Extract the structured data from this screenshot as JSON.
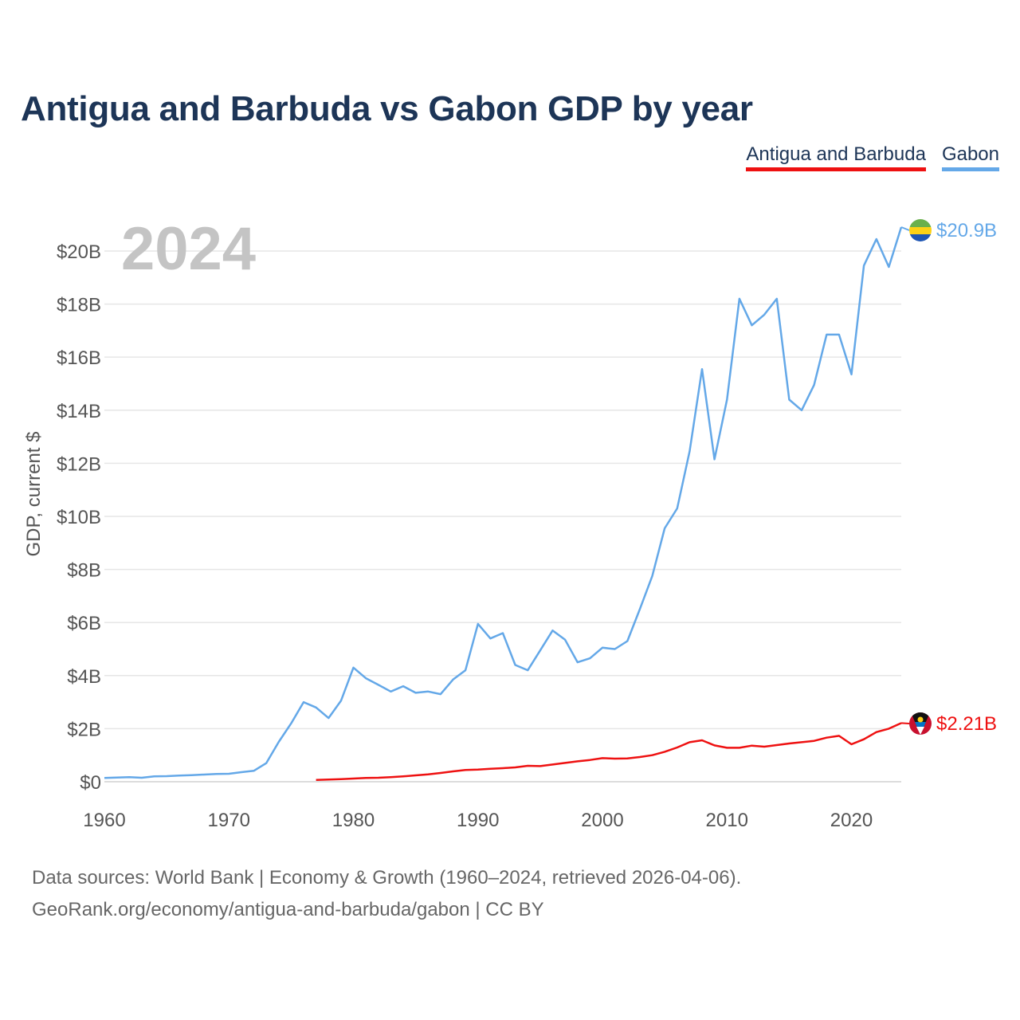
{
  "title": "Antigua and Barbuda vs Gabon GDP by year",
  "year_label": "2024",
  "legend": [
    {
      "name": "Antigua and Barbuda",
      "color": "#ee1111"
    },
    {
      "name": "Gabon",
      "color": "#64a8e8"
    }
  ],
  "source_line1": "Data sources: World Bank | Economy & Growth (1960–2024, retrieved 2026-04-06).",
  "source_line2": "GeoRank.org/economy/antigua-and-barbuda/gabon | CC BY",
  "chart_data": {
    "type": "line",
    "title": "Antigua and Barbuda vs Gabon GDP by year",
    "xlabel": "",
    "ylabel": "GDP, current $",
    "xlim": [
      1960,
      2024
    ],
    "ylim": [
      0,
      21
    ],
    "y_unit": "billions of current US$",
    "x_ticks": [
      1960,
      1970,
      1980,
      1990,
      2000,
      2010,
      2020
    ],
    "y_ticks": [
      {
        "value": 0,
        "label": "$0"
      },
      {
        "value": 2,
        "label": "$2B"
      },
      {
        "value": 4,
        "label": "$4B"
      },
      {
        "value": 6,
        "label": "$6B"
      },
      {
        "value": 8,
        "label": "$8B"
      },
      {
        "value": 10,
        "label": "$10B"
      },
      {
        "value": 12,
        "label": "$12B"
      },
      {
        "value": 14,
        "label": "$14B"
      },
      {
        "value": 16,
        "label": "$16B"
      },
      {
        "value": 18,
        "label": "$18B"
      },
      {
        "value": 20,
        "label": "$20B"
      }
    ],
    "series": [
      {
        "name": "Gabon",
        "color": "#64a8e8",
        "end_label": "$20.9B",
        "flag": "gabon-flag",
        "x": [
          1960,
          1961,
          1962,
          1963,
          1964,
          1965,
          1966,
          1967,
          1968,
          1969,
          1970,
          1971,
          1972,
          1973,
          1974,
          1975,
          1976,
          1977,
          1978,
          1979,
          1980,
          1981,
          1982,
          1983,
          1984,
          1985,
          1986,
          1987,
          1988,
          1989,
          1990,
          1991,
          1992,
          1993,
          1994,
          1995,
          1996,
          1997,
          1998,
          1999,
          2000,
          2001,
          2002,
          2003,
          2004,
          2005,
          2006,
          2007,
          2008,
          2009,
          2010,
          2011,
          2012,
          2013,
          2014,
          2015,
          2016,
          2017,
          2018,
          2019,
          2020,
          2021,
          2022,
          2023,
          2024
        ],
        "values": [
          0.14,
          0.16,
          0.17,
          0.15,
          0.2,
          0.21,
          0.23,
          0.25,
          0.27,
          0.29,
          0.3,
          0.36,
          0.41,
          0.7,
          1.5,
          2.2,
          3.0,
          2.8,
          2.4,
          3.05,
          4.3,
          3.9,
          3.65,
          3.4,
          3.6,
          3.35,
          3.4,
          3.3,
          3.85,
          4.2,
          5.95,
          5.4,
          5.6,
          4.4,
          4.2,
          4.95,
          5.7,
          5.35,
          4.5,
          4.65,
          5.05,
          5.0,
          5.3,
          6.5,
          7.75,
          9.55,
          10.3,
          12.45,
          15.55,
          12.15,
          14.4,
          18.2,
          17.2,
          17.6,
          18.2,
          14.4,
          14.0,
          14.95,
          16.85,
          16.85,
          15.35,
          19.45,
          20.45,
          19.4,
          20.9
        ]
      },
      {
        "name": "Antigua and Barbuda",
        "color": "#ee1111",
        "end_label": "$2.21B",
        "flag": "antigua-and-barbuda-flag",
        "x": [
          1977,
          1978,
          1979,
          1980,
          1981,
          1982,
          1983,
          1984,
          1985,
          1986,
          1987,
          1988,
          1989,
          1990,
          1991,
          1992,
          1993,
          1994,
          1995,
          1996,
          1997,
          1998,
          1999,
          2000,
          2001,
          2002,
          2003,
          2004,
          2005,
          2006,
          2007,
          2008,
          2009,
          2010,
          2011,
          2012,
          2013,
          2014,
          2015,
          2016,
          2017,
          2018,
          2019,
          2020,
          2021,
          2022,
          2023,
          2024
        ],
        "values": [
          0.07,
          0.08,
          0.1,
          0.12,
          0.14,
          0.15,
          0.17,
          0.2,
          0.24,
          0.28,
          0.33,
          0.39,
          0.44,
          0.46,
          0.49,
          0.51,
          0.54,
          0.6,
          0.59,
          0.65,
          0.71,
          0.77,
          0.82,
          0.89,
          0.87,
          0.88,
          0.93,
          1.0,
          1.13,
          1.29,
          1.49,
          1.56,
          1.37,
          1.28,
          1.28,
          1.36,
          1.32,
          1.38,
          1.44,
          1.49,
          1.54,
          1.66,
          1.73,
          1.41,
          1.6,
          1.87,
          2.0,
          2.21
        ]
      }
    ]
  }
}
